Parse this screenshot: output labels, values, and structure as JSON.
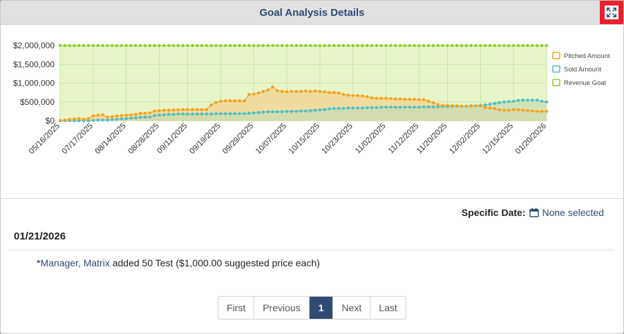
{
  "header": {
    "title": "Goal Analysis Details"
  },
  "filter": {
    "label": "Specific Date:",
    "value": "None selected"
  },
  "detail": {
    "date": "01/21/2026",
    "entry": {
      "prefix": "*",
      "user": "Manager, Matrix",
      "text": " added 50 Test ($1,000.00 suggested price each)"
    }
  },
  "pagination": {
    "first": "First",
    "previous": "Previous",
    "current": "1",
    "next": "Next",
    "last": "Last"
  },
  "chart_data": {
    "type": "area",
    "title": "",
    "xlabel": "",
    "ylabel": "",
    "ylim": [
      0,
      2000000
    ],
    "y_ticks": [
      "$0",
      "$500,000",
      "$1,000,000",
      "$1,500,000",
      "$2,000,000"
    ],
    "y_tick_values": [
      0,
      500000,
      1000000,
      1500000,
      2000000
    ],
    "x_tick_labels": [
      "05/16/2025",
      "07/17/2025",
      "08/14/2025",
      "08/28/2025",
      "09/11/2025",
      "09/19/2025",
      "09/29/2025",
      "10/07/2025",
      "10/15/2025",
      "10/23/2025",
      "11/02/2025",
      "11/12/2025",
      "11/20/2025",
      "12/02/2025",
      "12/15/2025",
      "01/20/2026"
    ],
    "legend_position": "right",
    "grid": true,
    "series": [
      {
        "name": "Pitched Amount",
        "color": "#f5a21e",
        "fill": "#efd99a",
        "values": [
          10000,
          20000,
          40000,
          50000,
          60000,
          40000,
          60000,
          130000,
          150000,
          160000,
          100000,
          110000,
          130000,
          140000,
          150000,
          160000,
          170000,
          200000,
          200000,
          210000,
          260000,
          270000,
          280000,
          280000,
          290000,
          290000,
          300000,
          300000,
          300000,
          300000,
          300000,
          300000,
          420000,
          490000,
          520000,
          530000,
          530000,
          530000,
          530000,
          530000,
          700000,
          710000,
          740000,
          780000,
          820000,
          900000,
          800000,
          780000,
          770000,
          780000,
          780000,
          780000,
          790000,
          780000,
          790000,
          780000,
          770000,
          750000,
          750000,
          740000,
          700000,
          680000,
          670000,
          670000,
          660000,
          640000,
          610000,
          600000,
          600000,
          600000,
          590000,
          580000,
          580000,
          570000,
          570000,
          570000,
          560000,
          560000,
          520000,
          480000,
          430000,
          410000,
          410000,
          400000,
          400000,
          390000,
          390000,
          390000,
          400000,
          390000,
          350000,
          340000,
          330000,
          290000,
          280000,
          280000,
          300000,
          290000,
          280000,
          270000,
          260000,
          250000,
          250000,
          250000
        ]
      },
      {
        "name": "Sold Amount",
        "color": "#4dbdc9",
        "fill": "#c8dcb0",
        "values": [
          0,
          0,
          0,
          0,
          0,
          0,
          0,
          10000,
          20000,
          20000,
          20000,
          30000,
          40000,
          50000,
          60000,
          70000,
          80000,
          90000,
          100000,
          100000,
          140000,
          150000,
          160000,
          170000,
          170000,
          180000,
          180000,
          180000,
          180000,
          180000,
          180000,
          180000,
          180000,
          190000,
          190000,
          190000,
          190000,
          190000,
          190000,
          190000,
          200000,
          210000,
          220000,
          230000,
          240000,
          240000,
          240000,
          240000,
          250000,
          250000,
          250000,
          260000,
          260000,
          270000,
          280000,
          290000,
          300000,
          320000,
          330000,
          330000,
          330000,
          340000,
          340000,
          340000,
          340000,
          350000,
          350000,
          350000,
          360000,
          360000,
          360000,
          360000,
          360000,
          360000,
          360000,
          360000,
          360000,
          370000,
          370000,
          370000,
          370000,
          380000,
          380000,
          380000,
          390000,
          390000,
          390000,
          400000,
          400000,
          410000,
          420000,
          440000,
          460000,
          480000,
          500000,
          510000,
          520000,
          540000,
          550000,
          550000,
          550000,
          550000,
          520000,
          500000
        ]
      },
      {
        "name": "Revenue Goal",
        "color": "#8ccd2c",
        "fill": "#e8f5c8",
        "constant": 2000000
      }
    ]
  }
}
